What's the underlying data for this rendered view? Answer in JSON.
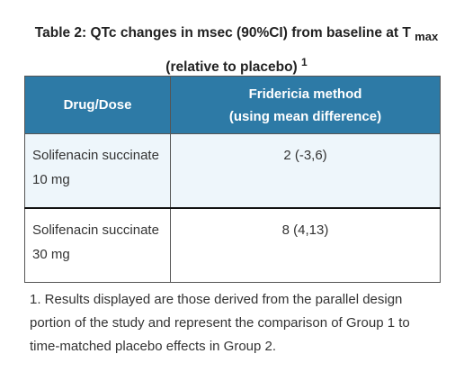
{
  "title": {
    "main": "Table 2: QTc changes in msec (90%CI) from baseline at T",
    "subscript": "max",
    "line2": "(relative to placebo)",
    "superscript": "1"
  },
  "table": {
    "header": [
      "Drug/Dose",
      [
        "Fridericia method",
        "(using mean difference)"
      ]
    ],
    "rows": [
      [
        "Solifenacin succinate 10 mg",
        "2 (-3,6)"
      ],
      [
        "Solifenacin succinate 30 mg",
        "8 (4,13)"
      ]
    ]
  },
  "footnote": "1. Results displayed are those derived from the parallel design portion of the study and represent the comparison of Group 1 to time-matched placebo effects in Group 2."
}
